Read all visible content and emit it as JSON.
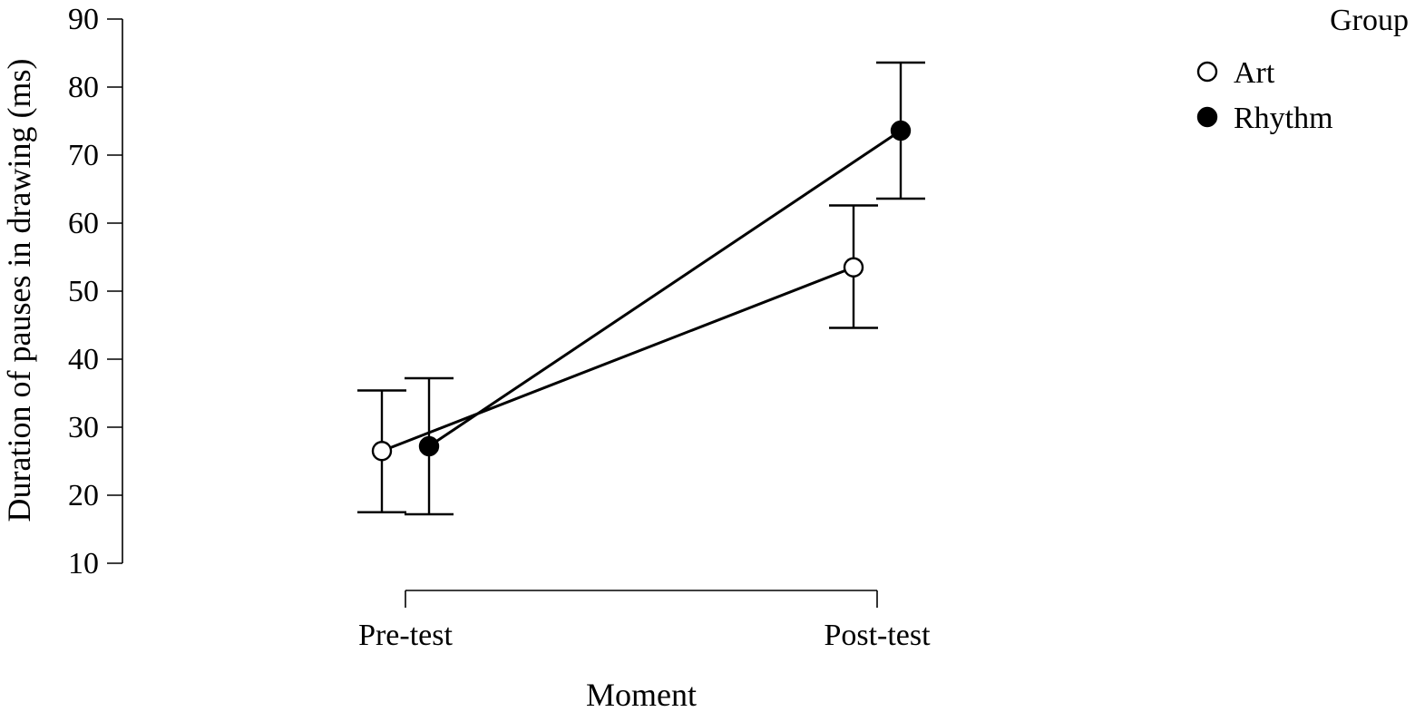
{
  "chart_data": {
    "type": "line",
    "title": "",
    "xlabel": "Moment",
    "ylabel": "Duration of pauses in drawing (ms)",
    "categories": [
      "Pre-test",
      "Post-test"
    ],
    "ylim": [
      10,
      90
    ],
    "yticks": [
      "10",
      "20",
      "30",
      "40",
      "50",
      "60",
      "70",
      "80",
      "90"
    ],
    "grid": false,
    "legend": {
      "title": "Group",
      "position": "top-right"
    },
    "series": [
      {
        "name": "Art",
        "marker": "open-circle",
        "values": [
          26.5,
          53.5
        ],
        "error_low": [
          17.5,
          44.6
        ],
        "error_high": [
          35.4,
          62.6
        ]
      },
      {
        "name": "Rhythm",
        "marker": "filled-circle",
        "values": [
          27.2,
          73.6
        ],
        "error_low": [
          17.2,
          63.6
        ],
        "error_high": [
          37.2,
          83.6
        ]
      }
    ],
    "colors": {
      "line": "#000000",
      "open_fill": "#ffffff",
      "filled_fill": "#000000"
    }
  }
}
